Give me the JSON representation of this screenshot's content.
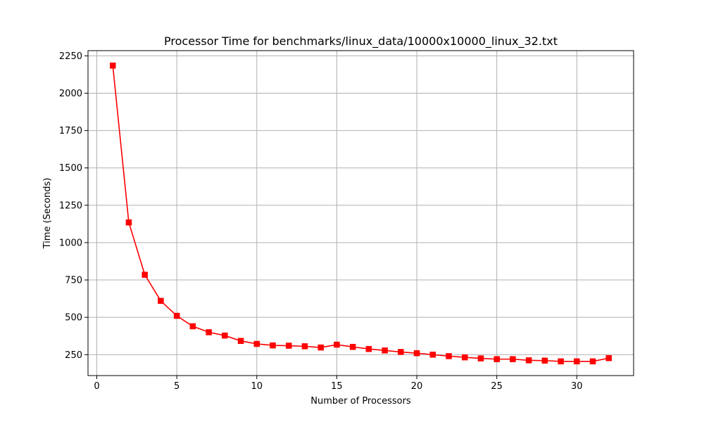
{
  "chart_data": {
    "type": "line",
    "title": "Processor Time for benchmarks/linux_data/10000x10000_linux_32.txt",
    "xlabel": "Number of Processors",
    "ylabel": "Time (Seconds)",
    "xlim": [
      -0.55,
      33.55
    ],
    "ylim": [
      110,
      2285
    ],
    "xticks": [
      0,
      5,
      10,
      15,
      20,
      25,
      30
    ],
    "yticks": [
      250,
      500,
      750,
      1000,
      1250,
      1500,
      1750,
      2000,
      2250
    ],
    "grid": true,
    "series": [
      {
        "color": "#ff0000",
        "marker": "square",
        "x": [
          1,
          2,
          3,
          4,
          5,
          6,
          7,
          8,
          9,
          10,
          11,
          12,
          13,
          14,
          15,
          16,
          17,
          18,
          19,
          20,
          21,
          22,
          23,
          24,
          25,
          26,
          27,
          28,
          29,
          30,
          31,
          32
        ],
        "y": [
          2185,
          1135,
          785,
          610,
          510,
          440,
          400,
          378,
          342,
          322,
          312,
          310,
          306,
          298,
          317,
          302,
          288,
          278,
          268,
          260,
          250,
          240,
          232,
          225,
          220,
          220,
          212,
          210,
          205,
          205,
          205,
          227
        ]
      }
    ]
  }
}
